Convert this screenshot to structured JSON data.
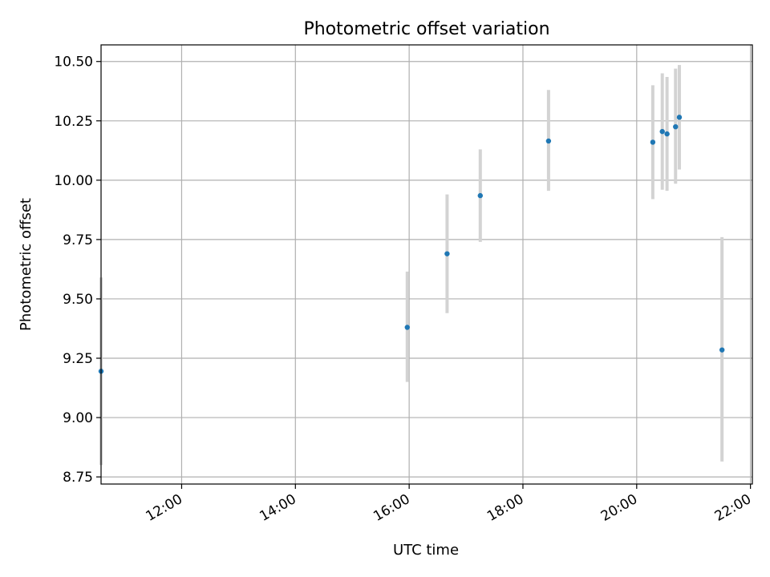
{
  "chart_data": {
    "type": "scatter",
    "title": "Photometric offset variation",
    "xlabel": "UTC time",
    "ylabel": "Photometric offset",
    "xlim": [
      "10:35",
      "22:02"
    ],
    "ylim": [
      8.72,
      10.57
    ],
    "grid": true,
    "x_ticks": [
      "12:00",
      "14:00",
      "16:00",
      "18:00",
      "20:00",
      "22:00"
    ],
    "y_ticks": [
      "8.75",
      "9.00",
      "9.25",
      "9.50",
      "9.75",
      "10.00",
      "10.25",
      "10.50"
    ],
    "marker_color": "#1f77b4",
    "errorbar_color": "#d3d3d3",
    "points": [
      {
        "x": "10:35",
        "y": 9.195,
        "err_low": 8.8,
        "err_high": 9.59
      },
      {
        "x": "15:58",
        "y": 9.38,
        "err_low": 9.15,
        "err_high": 9.615
      },
      {
        "x": "16:40",
        "y": 9.69,
        "err_low": 9.44,
        "err_high": 9.94
      },
      {
        "x": "17:15",
        "y": 9.935,
        "err_low": 9.74,
        "err_high": 10.13
      },
      {
        "x": "18:27",
        "y": 10.165,
        "err_low": 9.955,
        "err_high": 10.38
      },
      {
        "x": "20:17",
        "y": 10.16,
        "err_low": 9.92,
        "err_high": 10.4
      },
      {
        "x": "20:27",
        "y": 10.205,
        "err_low": 9.96,
        "err_high": 10.45
      },
      {
        "x": "20:32",
        "y": 10.195,
        "err_low": 9.955,
        "err_high": 10.435
      },
      {
        "x": "20:41",
        "y": 10.225,
        "err_low": 9.985,
        "err_high": 10.47
      },
      {
        "x": "20:45",
        "y": 10.265,
        "err_low": 10.045,
        "err_high": 10.485
      },
      {
        "x": "21:30",
        "y": 9.285,
        "err_low": 8.815,
        "err_high": 9.76
      }
    ]
  }
}
